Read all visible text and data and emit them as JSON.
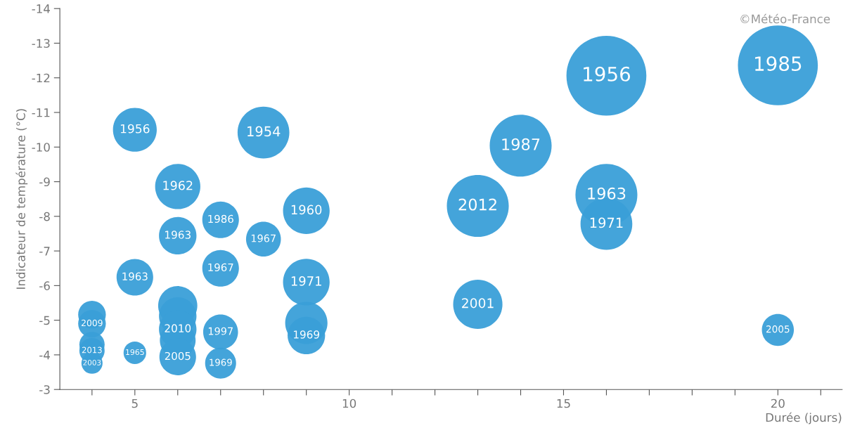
{
  "chart_data": {
    "type": "bubble",
    "xlabel": "Durée (jours)",
    "ylabel": "Indicateur de température (°C)",
    "xlim": [
      3.25,
      21.5
    ],
    "ylim": [
      -3,
      -14
    ],
    "xticks": [
      {
        "value": 4,
        "label": null
      },
      5,
      {
        "value": 6,
        "label": null
      },
      {
        "value": 7,
        "label": null
      },
      {
        "value": 8,
        "label": null
      },
      {
        "value": 9,
        "label": null
      },
      10,
      {
        "value": 11,
        "label": null
      },
      {
        "value": 12,
        "label": null
      },
      {
        "value": 13,
        "label": null
      },
      {
        "value": 14,
        "label": null
      },
      15,
      {
        "value": 16,
        "label": null
      },
      {
        "value": 17,
        "label": null
      },
      {
        "value": 18,
        "label": null
      },
      {
        "value": 19,
        "label": null
      },
      20,
      {
        "value": 21,
        "label": null
      }
    ],
    "yticks": [
      -14,
      -13,
      -12,
      -11,
      -10,
      -9,
      -8,
      -7,
      -6,
      -5,
      -4,
      -3
    ],
    "grid": false,
    "legend": false,
    "series": [
      {
        "color": "#3a9fd8",
        "x": [
          5,
          8,
          6,
          6,
          7,
          8,
          9,
          7,
          5,
          9,
          9,
          9,
          4,
          4,
          4,
          4,
          4,
          5,
          6,
          6,
          6,
          6,
          6,
          7,
          7,
          13,
          13,
          14,
          16,
          16,
          16,
          20,
          20
        ],
        "values": [
          -10.5,
          -10.42,
          -8.86,
          -7.44,
          -7.9,
          -7.34,
          -8.16,
          -6.5,
          -6.24,
          -6.1,
          -4.92,
          -4.56,
          -5.16,
          -4.9,
          -4.3,
          -4.12,
          -3.76,
          -4.06,
          -5.42,
          -5.12,
          -4.74,
          -4.42,
          -3.94,
          -4.66,
          -3.76,
          -8.3,
          -5.46,
          -10.04,
          -12.06,
          -8.62,
          -7.78,
          -12.36,
          -4.72
        ],
        "sizes": [
          0.3,
          0.42,
          0.32,
          0.22,
          0.21,
          0.19,
          0.34,
          0.21,
          0.21,
          0.34,
          0.28,
          0.22,
          0.12,
          0.12,
          0.1,
          0.1,
          0.07,
          0.08,
          0.24,
          0.22,
          0.22,
          0.2,
          0.21,
          0.19,
          0.15,
          0.6,
          0.38,
          0.6,
          1,
          0.6,
          0.42,
          1,
          0.16
        ]
      }
    ],
    "annotations": [
      {
        "text": "1956",
        "x": 5,
        "y": -10.5
      },
      {
        "text": "1954",
        "x": 8,
        "y": -10.42
      },
      {
        "text": "1962",
        "x": 6,
        "y": -8.86
      },
      {
        "text": "1963",
        "x": 6,
        "y": -7.44
      },
      {
        "text": "1986",
        "x": 7,
        "y": -7.9
      },
      {
        "text": "1967",
        "x": 8,
        "y": -7.34
      },
      {
        "text": "1960",
        "x": 9,
        "y": -8.16
      },
      {
        "text": "1967",
        "x": 7,
        "y": -6.5
      },
      {
        "text": "1963",
        "x": 5,
        "y": -6.24
      },
      {
        "text": "1971",
        "x": 9,
        "y": -6.1
      },
      {
        "text": "1969",
        "x": 9,
        "y": -4.56
      },
      {
        "text": "2009",
        "x": 4,
        "y": -4.9
      },
      {
        "text": "2013",
        "x": 4,
        "y": -4.12
      },
      {
        "text": "2003",
        "x": 4,
        "y": -3.76
      },
      {
        "text": "1965",
        "x": 5,
        "y": -4.06
      },
      {
        "text": "2010",
        "x": 6,
        "y": -4.74
      },
      {
        "text": "2005",
        "x": 6,
        "y": -3.94
      },
      {
        "text": "1997",
        "x": 7,
        "y": -4.66
      },
      {
        "text": "1969",
        "x": 7,
        "y": -3.76
      },
      {
        "text": "2012",
        "x": 13,
        "y": -8.3
      },
      {
        "text": "2001",
        "x": 13,
        "y": -5.46
      },
      {
        "text": "1987",
        "x": 14,
        "y": -10.04
      },
      {
        "text": "1956",
        "x": 16,
        "y": -12.06
      },
      {
        "text": "1963",
        "x": 16,
        "y": -8.62
      },
      {
        "text": "1971",
        "x": 16,
        "y": -7.78
      },
      {
        "text": "1985",
        "x": 20,
        "y": -12.36
      },
      {
        "text": "2005",
        "x": 20,
        "y": -4.72
      },
      "©Météo-France"
    ]
  }
}
